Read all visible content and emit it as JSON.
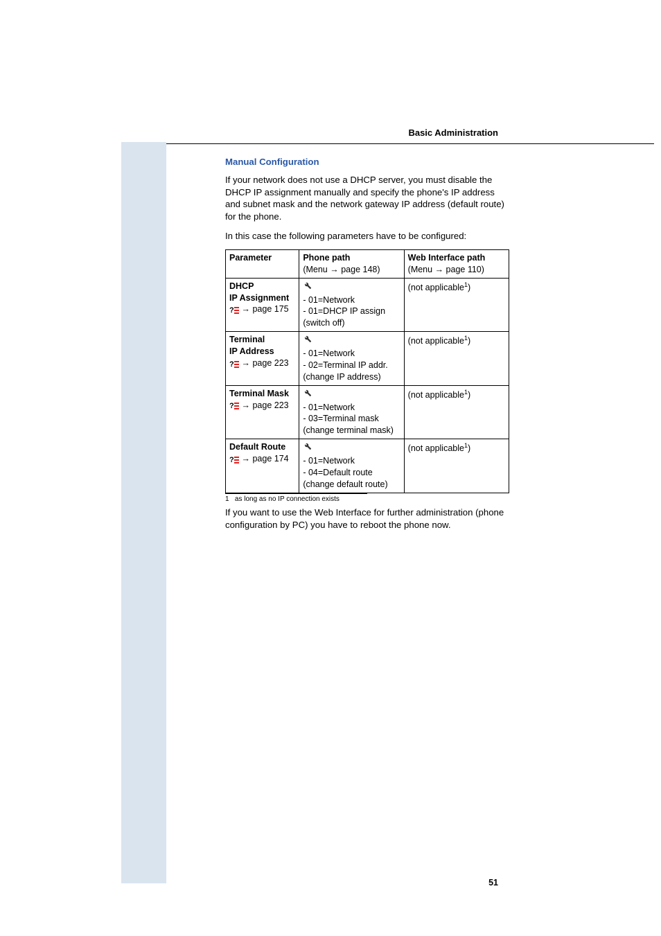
{
  "header": {
    "right": "Basic Administration"
  },
  "section": {
    "title": "Manual Configuration",
    "intro": "If your network does not use a DHCP server, you must disable the DHCP IP assignment manually and specify the phone's IP address and subnet mask and the network gateway IP address (default route) for the phone.",
    "lead": "In this case the following parameters have to be configured:"
  },
  "table": {
    "columns": [
      "Parameter",
      {
        "line1": "Phone path",
        "line2_prefix": "(Menu ",
        "arrow": "→",
        "line2_suffix": " page 148)"
      },
      {
        "line1": "Web Interface path",
        "line2_prefix": "(Menu ",
        "arrow": "→",
        "line2_suffix": " page 110)"
      }
    ],
    "rows": [
      {
        "param_lines": [
          "DHCP",
          "IP Assignment"
        ],
        "ref_page": "175",
        "phone_path": [
          "- 01=Network",
          "- 01=DHCP IP assign",
          "(switch off)"
        ],
        "web": "(not applicable",
        "web_sup": "1",
        "web_close": ")"
      },
      {
        "param_lines": [
          "Terminal",
          "IP Address"
        ],
        "ref_page": "223",
        "phone_path": [
          "- 01=Network",
          "- 02=Terminal IP addr.",
          "(change IP address)"
        ],
        "web": "(not applicable",
        "web_sup": "1",
        "web_close": ")"
      },
      {
        "param_lines": [
          "Terminal Mask"
        ],
        "ref_page": "223",
        "phone_path": [
          "- 01=Network",
          "- 03=Terminal mask",
          "(change terminal mask)"
        ],
        "web": "(not applicable",
        "web_sup": "1",
        "web_close": ")"
      },
      {
        "param_lines": [
          "Default Route"
        ],
        "ref_page": "174",
        "phone_path": [
          "- 01=Network",
          "- 04=Default route",
          "(change default route)"
        ],
        "web": "(not applicable",
        "web_sup": "1",
        "web_close": ")"
      }
    ]
  },
  "footnote": {
    "marker": "1",
    "text": "as long as no IP connection exists"
  },
  "closing": "If you want to use the Web Interface for further administration (phone configuration by PC) you have to reboot the phone now.",
  "page_number": "51",
  "arrow_glyph": "→",
  "ref_prefix": " page "
}
